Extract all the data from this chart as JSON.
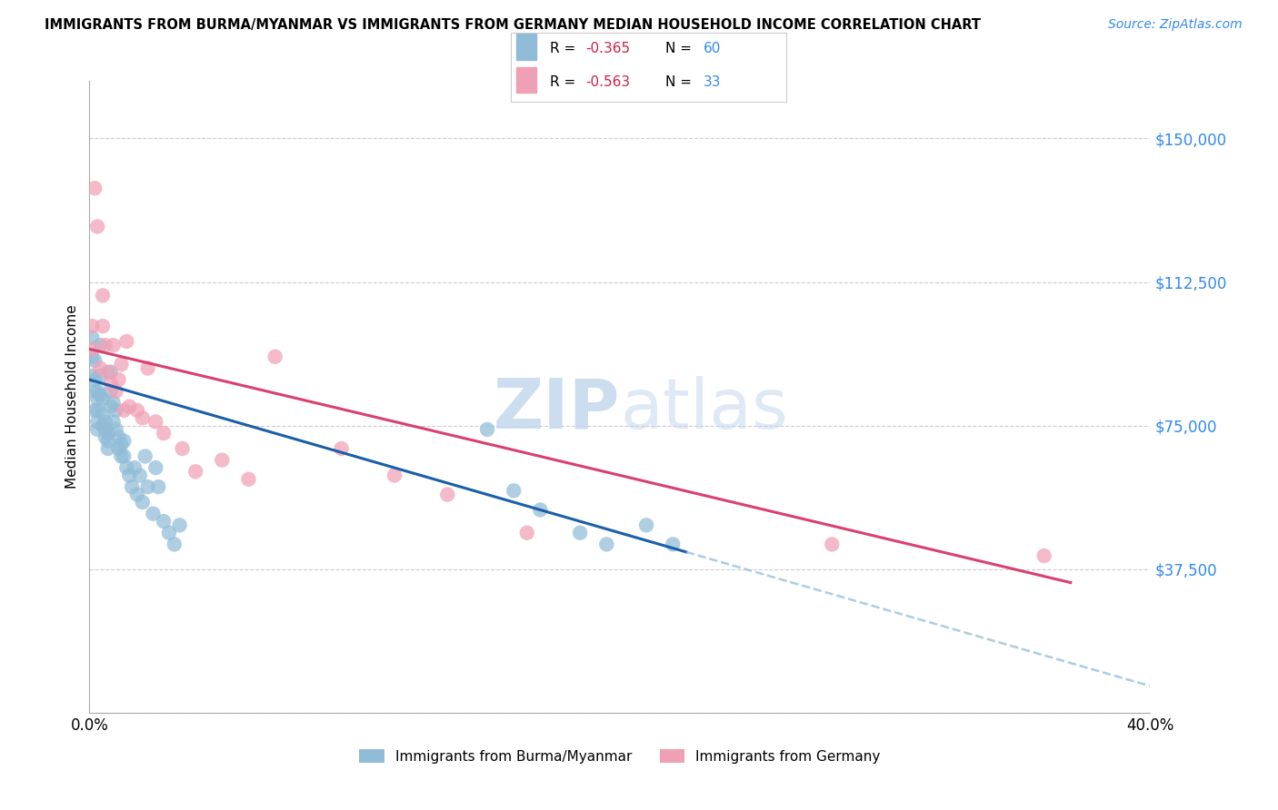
{
  "title": "IMMIGRANTS FROM BURMA/MYANMAR VS IMMIGRANTS FROM GERMANY MEDIAN HOUSEHOLD INCOME CORRELATION CHART",
  "source": "Source: ZipAtlas.com",
  "ylabel": "Median Household Income",
  "xlim": [
    0.0,
    0.4
  ],
  "ylim": [
    0,
    165000
  ],
  "ytick_vals": [
    0,
    37500,
    75000,
    112500,
    150000
  ],
  "xtick_vals": [
    0.0,
    0.1,
    0.2,
    0.3,
    0.4
  ],
  "xtick_labels": [
    "0.0%",
    "",
    "",
    "",
    "40.0%"
  ],
  "blue_R": "-0.365",
  "blue_N": "60",
  "pink_R": "-0.563",
  "pink_N": "33",
  "blue_dot_color": "#90bcd8",
  "pink_dot_color": "#f0a0b5",
  "blue_line_color": "#1a5fa8",
  "pink_line_color": "#d94070",
  "blue_dash_color": "#90bcd8",
  "ytick_color": "#3388ee",
  "blue_label": "Immigrants from Burma/Myanmar",
  "pink_label": "Immigrants from Germany",
  "blue_line_x0": 0.0,
  "blue_line_y0": 87000,
  "blue_line_x1": 0.225,
  "blue_line_y1": 42000,
  "blue_line_xdash_end": 0.4,
  "pink_line_x0": 0.0,
  "pink_line_y0": 95000,
  "pink_line_x1": 0.37,
  "pink_line_y1": 34000,
  "blue_scatter_x": [
    0.001,
    0.001,
    0.001,
    0.002,
    0.002,
    0.002,
    0.002,
    0.003,
    0.003,
    0.003,
    0.003,
    0.003,
    0.004,
    0.004,
    0.004,
    0.005,
    0.005,
    0.005,
    0.006,
    0.006,
    0.006,
    0.007,
    0.007,
    0.007,
    0.008,
    0.008,
    0.008,
    0.009,
    0.009,
    0.01,
    0.01,
    0.011,
    0.011,
    0.012,
    0.012,
    0.013,
    0.013,
    0.014,
    0.015,
    0.016,
    0.017,
    0.018,
    0.019,
    0.02,
    0.021,
    0.022,
    0.024,
    0.025,
    0.026,
    0.028,
    0.03,
    0.032,
    0.034,
    0.15,
    0.16,
    0.17,
    0.185,
    0.195,
    0.21,
    0.22
  ],
  "blue_scatter_y": [
    98000,
    93000,
    88000,
    92000,
    87000,
    84000,
    79000,
    84000,
    82000,
    79000,
    76000,
    74000,
    96000,
    88000,
    83000,
    82000,
    78000,
    75000,
    76000,
    74000,
    72000,
    73000,
    71000,
    69000,
    89000,
    84000,
    80000,
    81000,
    76000,
    79000,
    74000,
    72000,
    69000,
    70000,
    67000,
    71000,
    67000,
    64000,
    62000,
    59000,
    64000,
    57000,
    62000,
    55000,
    67000,
    59000,
    52000,
    64000,
    59000,
    50000,
    47000,
    44000,
    49000,
    74000,
    58000,
    53000,
    47000,
    44000,
    49000,
    44000
  ],
  "pink_scatter_x": [
    0.001,
    0.001,
    0.002,
    0.003,
    0.004,
    0.005,
    0.005,
    0.006,
    0.007,
    0.008,
    0.009,
    0.01,
    0.011,
    0.012,
    0.013,
    0.014,
    0.015,
    0.018,
    0.02,
    0.022,
    0.025,
    0.028,
    0.035,
    0.04,
    0.05,
    0.06,
    0.07,
    0.095,
    0.115,
    0.135,
    0.165,
    0.28,
    0.36
  ],
  "pink_scatter_y": [
    101000,
    95000,
    137000,
    127000,
    90000,
    101000,
    109000,
    96000,
    89000,
    86000,
    96000,
    84000,
    87000,
    91000,
    79000,
    97000,
    80000,
    79000,
    77000,
    90000,
    76000,
    73000,
    69000,
    63000,
    66000,
    61000,
    93000,
    69000,
    62000,
    57000,
    47000,
    44000,
    41000
  ]
}
